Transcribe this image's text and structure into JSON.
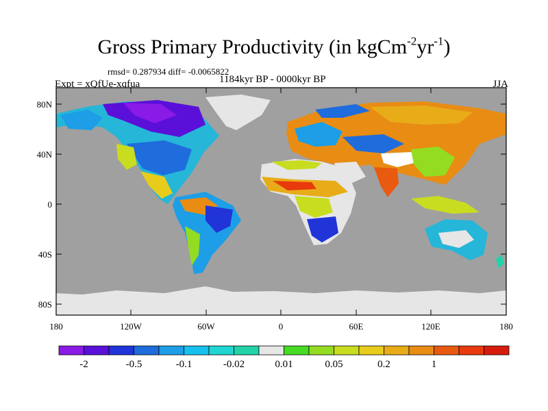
{
  "header": {
    "title_main": "Gross Primary Productivity (in kgCm",
    "title_sup1": "-2",
    "title_mid": "yr",
    "title_sup2": "-1",
    "title_end": ")",
    "stats": "rmsd= 0.287934 diff= -0.0065822",
    "experiment": "Expt = xQfUe-xqfua",
    "period": "1184kyr BP - 0000kyr BP",
    "season": "JJA"
  },
  "axes": {
    "lat_labels": [
      "80N",
      "40N",
      "0",
      "40S",
      "80S"
    ],
    "lon_labels": [
      "180",
      "120W",
      "60W",
      "0",
      "60E",
      "120E",
      "180"
    ]
  },
  "legend": {
    "labels": [
      "-2",
      "-0.5",
      "-0.1",
      "-0.02",
      "0.01",
      "0.05",
      "0.2",
      "1"
    ],
    "colors": [
      "#8a1ae6",
      "#5a10d8",
      "#2034d8",
      "#1f6cdc",
      "#1d9ee6",
      "#18c0f0",
      "#1fd6d2",
      "#22d2a8",
      "#e6e6e6",
      "#46dc24",
      "#94dc22",
      "#c8dc20",
      "#e8cc1c",
      "#e8ac18",
      "#e88c14",
      "#e85a10",
      "#e83a0c",
      "#d81c0c"
    ]
  },
  "colors": {
    "ocean": "#a0a0a0",
    "no_change": "#e6e6e6",
    "coast": "#000000"
  }
}
